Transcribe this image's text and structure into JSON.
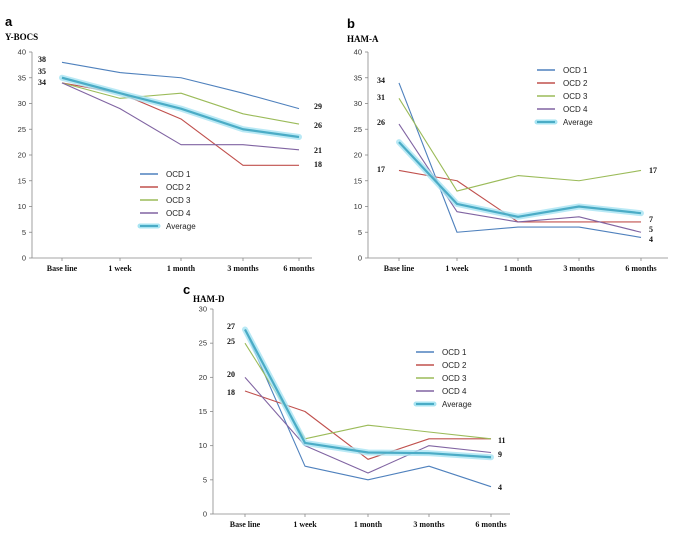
{
  "colors": {
    "OCD 1": "#4F81BD",
    "OCD 2": "#C0504D",
    "OCD 3": "#9BBB59",
    "OCD 4": "#8064A2",
    "Average": "#4BACC6"
  },
  "chart_data": [
    {
      "type": "line",
      "panel_label": "a",
      "title": "Y-BOCS",
      "categories": [
        "Base line",
        "1 week",
        "1 month",
        "3 months",
        "6 months"
      ],
      "ylim": [
        0,
        40
      ],
      "yticks": [
        0,
        5,
        10,
        15,
        20,
        25,
        30,
        35,
        40
      ],
      "grid": false,
      "legend_position": "bottom-center",
      "series": [
        {
          "name": "OCD 1",
          "values": [
            38,
            36,
            35,
            32,
            29
          ]
        },
        {
          "name": "OCD 2",
          "values": [
            34,
            32,
            27,
            18,
            18
          ]
        },
        {
          "name": "OCD 3",
          "values": [
            34,
            31,
            32,
            28,
            26
          ]
        },
        {
          "name": "OCD 4",
          "values": [
            34,
            29,
            22,
            22,
            21
          ]
        },
        {
          "name": "Average",
          "values": [
            35,
            32,
            29,
            25,
            23.5
          ]
        }
      ],
      "start_labels": [
        "38",
        "35",
        "34"
      ],
      "end_labels": [
        "29",
        "26",
        "21",
        "18"
      ]
    },
    {
      "type": "line",
      "panel_label": "b",
      "title": "HAM-A",
      "categories": [
        "Base line",
        "1 week",
        "1 month",
        "3 months",
        "6 months"
      ],
      "ylim": [
        0,
        40
      ],
      "yticks": [
        0,
        5,
        10,
        15,
        20,
        25,
        30,
        35,
        40
      ],
      "grid": false,
      "legend_position": "top-right",
      "series": [
        {
          "name": "OCD 1",
          "values": [
            34,
            5,
            6,
            6,
            4
          ]
        },
        {
          "name": "OCD 2",
          "values": [
            17,
            15,
            7,
            7,
            7
          ]
        },
        {
          "name": "OCD 3",
          "values": [
            31,
            13,
            16,
            15,
            17
          ]
        },
        {
          "name": "OCD 4",
          "values": [
            26,
            9,
            7,
            8,
            5
          ]
        },
        {
          "name": "Average",
          "values": [
            22.5,
            10.5,
            8,
            10,
            8.7
          ]
        }
      ],
      "start_labels": [
        "34",
        "31",
        "26",
        "17"
      ],
      "end_labels": [
        "17",
        "7",
        "5",
        "4"
      ]
    },
    {
      "type": "line",
      "panel_label": "c",
      "title": "HAM-D",
      "categories": [
        "Base line",
        "1 week",
        "1 month",
        "3 months",
        "6 months"
      ],
      "ylim": [
        0,
        30
      ],
      "yticks": [
        0,
        5,
        10,
        15,
        20,
        25,
        30
      ],
      "grid": false,
      "legend_position": "top-right",
      "series": [
        {
          "name": "OCD 1",
          "values": [
            27,
            7,
            5,
            7,
            4
          ]
        },
        {
          "name": "OCD 2",
          "values": [
            18,
            15,
            8,
            11,
            11
          ]
        },
        {
          "name": "OCD 3",
          "values": [
            25,
            11,
            13,
            12,
            11
          ]
        },
        {
          "name": "OCD 4",
          "values": [
            20,
            10,
            6,
            10,
            9
          ]
        },
        {
          "name": "Average",
          "values": [
            27,
            10.4,
            9,
            8.9,
            8.3
          ]
        }
      ],
      "start_labels": [
        "27",
        "25",
        "20",
        "18"
      ],
      "end_labels": [
        "11",
        "9",
        "4"
      ]
    }
  ]
}
